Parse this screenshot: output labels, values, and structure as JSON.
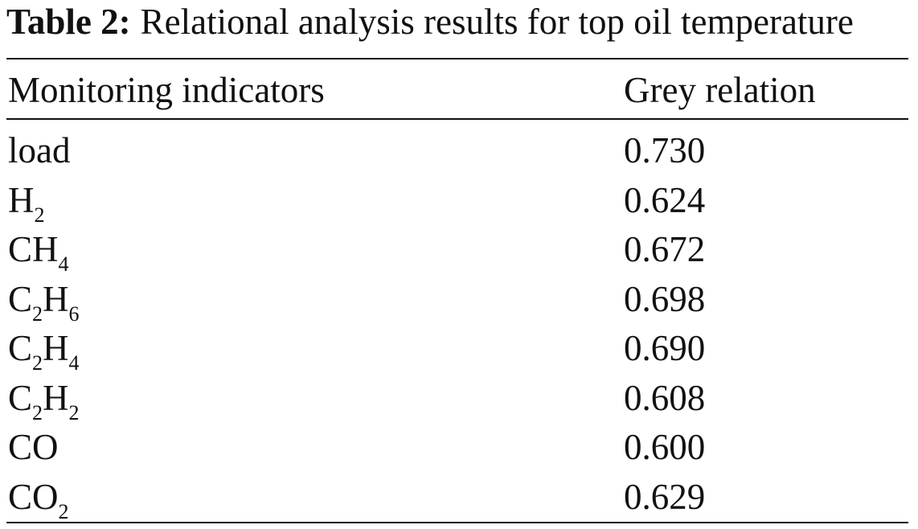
{
  "caption": {
    "label": "Table 2:",
    "text": "Relational analysis results for top oil temperature"
  },
  "table": {
    "headers": [
      "Monitoring indicators",
      "Grey relation"
    ],
    "rows": [
      {
        "indicator": [
          {
            "t": "load"
          }
        ],
        "value": "0.730"
      },
      {
        "indicator": [
          {
            "t": "H"
          },
          {
            "t": "2",
            "sub": true
          }
        ],
        "value": "0.624"
      },
      {
        "indicator": [
          {
            "t": "CH"
          },
          {
            "t": "4",
            "sub": true
          }
        ],
        "value": "0.672"
      },
      {
        "indicator": [
          {
            "t": "C"
          },
          {
            "t": "2",
            "sub": true
          },
          {
            "t": "H"
          },
          {
            "t": "6",
            "sub": true
          }
        ],
        "value": "0.698"
      },
      {
        "indicator": [
          {
            "t": "C"
          },
          {
            "t": "2",
            "sub": true
          },
          {
            "t": "H"
          },
          {
            "t": "4",
            "sub": true
          }
        ],
        "value": "0.690"
      },
      {
        "indicator": [
          {
            "t": "C"
          },
          {
            "t": "2",
            "sub": true
          },
          {
            "t": "H"
          },
          {
            "t": "2",
            "sub": true
          }
        ],
        "value": "0.608"
      },
      {
        "indicator": [
          {
            "t": "CO"
          }
        ],
        "value": "0.600"
      },
      {
        "indicator": [
          {
            "t": "CO"
          },
          {
            "t": "2",
            "sub": true
          }
        ],
        "value": "0.629"
      }
    ]
  }
}
